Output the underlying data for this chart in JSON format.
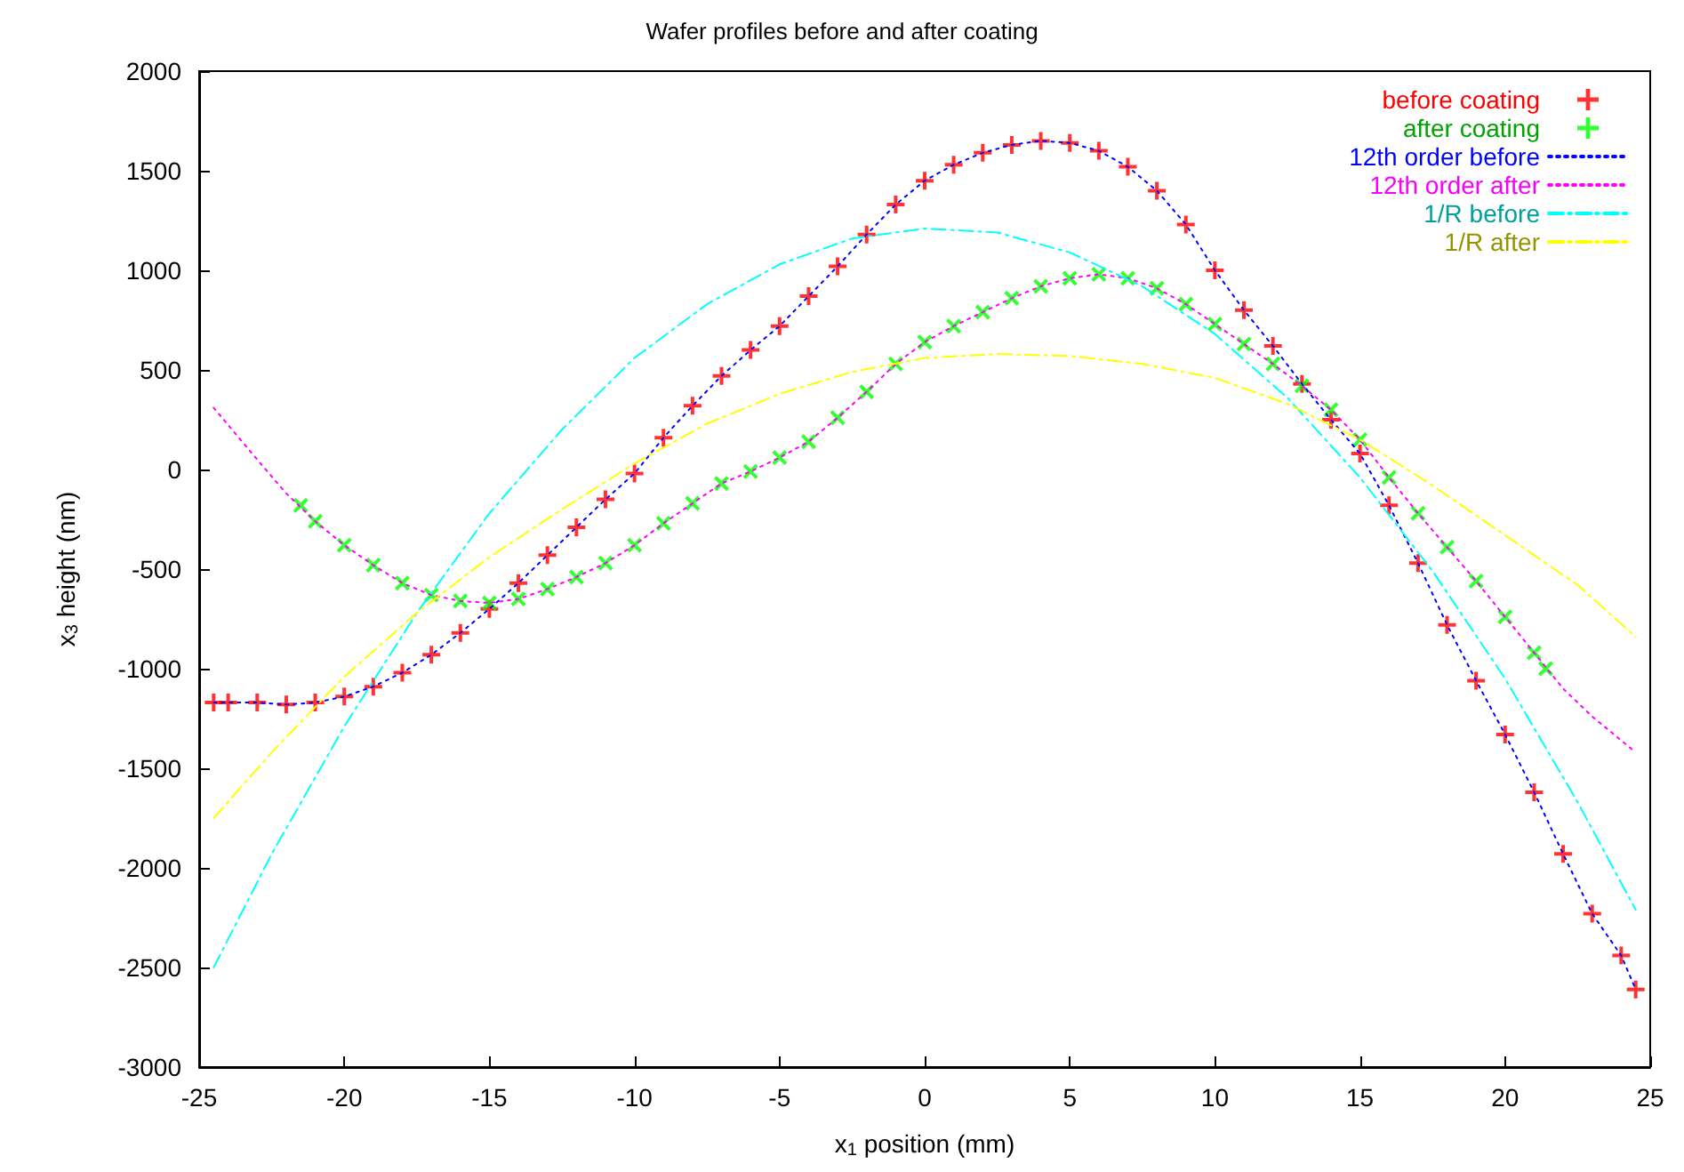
{
  "chart_data": {
    "type": "scatter",
    "title": "Wafer profiles before and after coating",
    "xlabel": "x$_{1}$ position (mm)",
    "ylabel": "x$_{3}$ height (nm)",
    "xlim": [
      -25,
      25
    ],
    "ylim": [
      -3000,
      2000
    ],
    "xticks": [
      -25,
      -20,
      -15,
      -10,
      -5,
      0,
      5,
      10,
      15,
      20,
      25
    ],
    "yticks": [
      -3000,
      -2500,
      -2000,
      -1500,
      -1000,
      -500,
      0,
      500,
      1000,
      1500,
      2000
    ],
    "legend": "top right",
    "series": [
      {
        "name": "before coating",
        "type": "scatter",
        "marker": "plus",
        "color": "#ff0000",
        "x": [
          -24.5,
          -24,
          -23,
          -22,
          -21,
          -20,
          -19,
          -18,
          -17,
          -16,
          -15,
          -14,
          -13,
          -12,
          -11,
          -10,
          -9,
          -8,
          -7,
          -6,
          -5,
          -4,
          -3,
          -2,
          -1,
          0,
          1,
          2,
          3,
          4,
          5,
          6,
          7,
          8,
          9,
          10,
          11,
          12,
          13,
          14,
          15,
          16,
          17,
          18,
          19,
          20,
          21,
          22,
          23,
          24,
          24.5
        ],
        "values": [
          -1170,
          -1170,
          -1170,
          -1180,
          -1170,
          -1140,
          -1090,
          -1020,
          -930,
          -820,
          -700,
          -570,
          -430,
          -290,
          -150,
          -20,
          160,
          320,
          470,
          600,
          720,
          870,
          1020,
          1180,
          1330,
          1450,
          1530,
          1590,
          1630,
          1650,
          1640,
          1600,
          1520,
          1400,
          1230,
          1000,
          800,
          620,
          430,
          250,
          80,
          -180,
          -470,
          -780,
          -1060,
          -1330,
          -1620,
          -1930,
          -2230,
          -2440,
          -2610
        ]
      },
      {
        "name": "after coating",
        "type": "scatter",
        "marker": "cross",
        "color": "#00ff00",
        "x": [
          -21.5,
          -21,
          -20,
          -19,
          -18,
          -17,
          -16,
          -15,
          -14,
          -13,
          -12,
          -11,
          -10,
          -9,
          -8,
          -7,
          -6,
          -5,
          -4,
          -3,
          -2,
          -1,
          0,
          1,
          2,
          3,
          4,
          5,
          6,
          7,
          8,
          9,
          10,
          11,
          12,
          13,
          14,
          15,
          16,
          17,
          18,
          19,
          20,
          21,
          21.4
        ],
        "values": [
          -180,
          -260,
          -380,
          -480,
          -570,
          -630,
          -660,
          -670,
          -650,
          -600,
          -540,
          -470,
          -380,
          -270,
          -170,
          -70,
          -10,
          60,
          140,
          260,
          390,
          530,
          640,
          720,
          790,
          860,
          920,
          960,
          980,
          960,
          910,
          830,
          730,
          630,
          530,
          420,
          300,
          150,
          -40,
          -220,
          -390,
          -560,
          -740,
          -920,
          -1000
        ]
      },
      {
        "name": "12th order before",
        "type": "line",
        "line_style": "dotted",
        "color": "#0000ff",
        "x": [
          -24.5,
          -24,
          -23,
          -22,
          -21,
          -20,
          -19,
          -18,
          -17,
          -16,
          -15,
          -14,
          -13,
          -12,
          -11,
          -10,
          -9,
          -8,
          -7,
          -6,
          -5,
          -4,
          -3,
          -2,
          -1,
          0,
          1,
          2,
          3,
          4,
          5,
          6,
          7,
          8,
          9,
          10,
          11,
          12,
          13,
          14,
          15,
          16,
          17,
          18,
          19,
          20,
          21,
          22,
          23,
          24,
          24.5
        ],
        "values": [
          -1170,
          -1170,
          -1170,
          -1180,
          -1170,
          -1140,
          -1090,
          -1020,
          -930,
          -820,
          -700,
          -570,
          -430,
          -290,
          -150,
          -20,
          160,
          320,
          470,
          600,
          720,
          870,
          1020,
          1180,
          1330,
          1450,
          1530,
          1590,
          1630,
          1650,
          1640,
          1600,
          1520,
          1400,
          1230,
          1000,
          800,
          620,
          430,
          250,
          80,
          -180,
          -470,
          -780,
          -1060,
          -1330,
          -1620,
          -1930,
          -2230,
          -2440,
          -2610
        ]
      },
      {
        "name": "12th order after",
        "type": "line",
        "line_style": "dotted",
        "color": "#ff00ff",
        "x": [
          -24.5,
          -23,
          -22,
          -21,
          -20,
          -19,
          -18,
          -17,
          -16,
          -15,
          -14,
          -13,
          -12,
          -11,
          -10,
          -9,
          -8,
          -7,
          -6,
          -5,
          -4,
          -3,
          -2,
          -1,
          0,
          1,
          2,
          3,
          4,
          5,
          6,
          7,
          8,
          9,
          10,
          11,
          12,
          13,
          14,
          15,
          16,
          17,
          18,
          19,
          20,
          21,
          22,
          23,
          24,
          24.5
        ],
        "values": [
          310,
          50,
          -120,
          -260,
          -380,
          -480,
          -570,
          -630,
          -660,
          -670,
          -650,
          -600,
          -540,
          -470,
          -380,
          -270,
          -170,
          -70,
          -10,
          60,
          140,
          260,
          390,
          530,
          640,
          720,
          790,
          860,
          920,
          960,
          980,
          960,
          910,
          830,
          730,
          630,
          530,
          420,
          300,
          150,
          -40,
          -220,
          -390,
          -560,
          -740,
          -920,
          -1100,
          -1240,
          -1360,
          -1420
        ]
      },
      {
        "name": "1/R before",
        "type": "line",
        "line_style": "dashdot",
        "color": "#00ffff",
        "x": [
          -24.5,
          -22.5,
          -20,
          -17.5,
          -15,
          -12.5,
          -10,
          -7.5,
          -5,
          -2.5,
          0,
          2.5,
          5,
          7.5,
          10,
          12.5,
          15,
          17.5,
          20,
          22.5,
          24.5
        ],
        "values": [
          -2500,
          -1930,
          -1290,
          -720,
          -220,
          200,
          560,
          830,
          1030,
          1160,
          1210,
          1190,
          1090,
          920,
          680,
          360,
          -40,
          -510,
          -1050,
          -1670,
          -2210
        ]
      },
      {
        "name": "1/R after",
        "type": "line",
        "line_style": "dashdot",
        "color": "#ffff00",
        "x": [
          -24.5,
          -22.5,
          -20,
          -17.5,
          -15,
          -12.5,
          -10,
          -7.5,
          -5,
          -2.5,
          0,
          2.5,
          5,
          7.5,
          10,
          12.5,
          15,
          17.5,
          20,
          22.5,
          24.5
        ],
        "values": [
          -1750,
          -1420,
          -1040,
          -720,
          -440,
          -200,
          30,
          230,
          380,
          490,
          560,
          580,
          570,
          530,
          460,
          330,
          150,
          -80,
          -330,
          -580,
          -840
        ]
      }
    ]
  }
}
